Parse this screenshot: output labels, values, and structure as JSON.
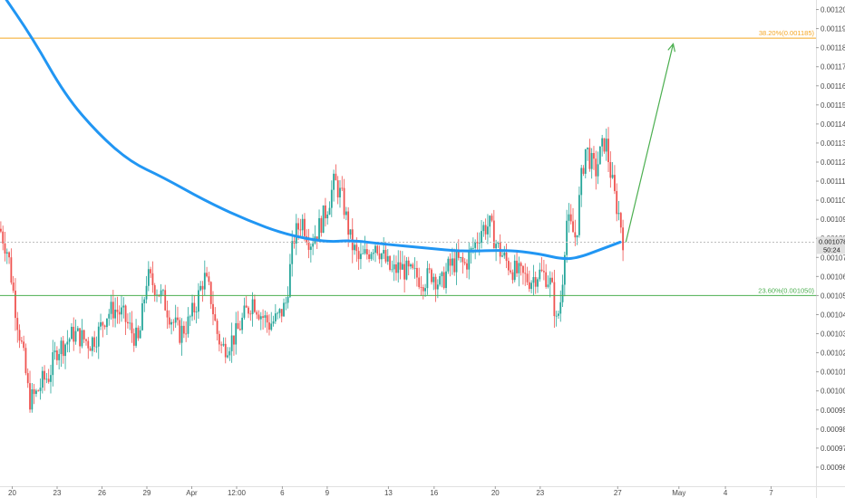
{
  "chart_data": {
    "type": "candlestick",
    "y_axis": {
      "min": 0.00095,
      "max": 0.001205,
      "ticks": [
        "0.001200",
        "0.001190",
        "0.001180",
        "0.001170",
        "0.001160",
        "0.001150",
        "0.001140",
        "0.001130",
        "0.001120",
        "0.001110",
        "0.001100",
        "0.001090",
        "0.001080",
        "0.001070",
        "0.001060",
        "0.001050",
        "0.001040",
        "0.001030",
        "0.001020",
        "0.001010",
        "0.001000",
        "0.000990",
        "0.000980",
        "0.000970",
        "0.000960"
      ]
    },
    "x_axis": {
      "labels": [
        {
          "text": "20",
          "pos": 0.015
        },
        {
          "text": "23",
          "pos": 0.07
        },
        {
          "text": "26",
          "pos": 0.125
        },
        {
          "text": "29",
          "pos": 0.18
        },
        {
          "text": "Apr",
          "pos": 0.235
        },
        {
          "text": "12:00",
          "pos": 0.29
        },
        {
          "text": "6",
          "pos": 0.346
        },
        {
          "text": "9",
          "pos": 0.401
        },
        {
          "text": "13",
          "pos": 0.476
        },
        {
          "text": "16",
          "pos": 0.532
        },
        {
          "text": "20",
          "pos": 0.607
        },
        {
          "text": "23",
          "pos": 0.662
        },
        {
          "text": "27",
          "pos": 0.757
        },
        {
          "text": "May",
          "pos": 0.832
        },
        {
          "text": "4",
          "pos": 0.889
        },
        {
          "text": "7",
          "pos": 0.945
        }
      ]
    },
    "fib_levels": [
      {
        "label": "38.20%(0.001185)",
        "value": 0.001185,
        "color": "#f5a623"
      },
      {
        "label": "23.60%(0.001050)",
        "value": 0.00105,
        "color": "#4caf50"
      }
    ],
    "current_price": {
      "value": 0.001078,
      "label": "0.001078",
      "countdown": "50:24"
    },
    "moving_average": {
      "color": "#2196f3",
      "points": [
        [
          0.0,
          0.00121
        ],
        [
          0.04,
          0.001185
        ],
        [
          0.08,
          0.001155
        ],
        [
          0.12,
          0.001135
        ],
        [
          0.16,
          0.00112
        ],
        [
          0.2,
          0.001112
        ],
        [
          0.25,
          0.0011
        ],
        [
          0.3,
          0.00109
        ],
        [
          0.35,
          0.001082
        ],
        [
          0.4,
          0.001078
        ],
        [
          0.43,
          0.001079
        ],
        [
          0.47,
          0.001077
        ],
        [
          0.52,
          0.001075
        ],
        [
          0.57,
          0.001073
        ],
        [
          0.62,
          0.001074
        ],
        [
          0.66,
          0.001072
        ],
        [
          0.69,
          0.001069
        ],
        [
          0.71,
          0.00107
        ],
        [
          0.735,
          0.001074
        ],
        [
          0.76,
          0.001078
        ]
      ]
    },
    "projection_arrow": {
      "from": [
        0.767,
        0.001078
      ],
      "to": [
        0.825,
        0.001182
      ],
      "color": "#4caf50"
    },
    "price_path": [
      [
        0.0,
        0.001085
      ],
      [
        0.01,
        0.001072
      ],
      [
        0.02,
        0.00104
      ],
      [
        0.028,
        0.00102
      ],
      [
        0.036,
        0.000995
      ],
      [
        0.044,
        0.000998
      ],
      [
        0.052,
        0.001005
      ],
      [
        0.06,
        0.001008
      ],
      [
        0.07,
        0.001022
      ],
      [
        0.08,
        0.001025
      ],
      [
        0.09,
        0.00103
      ],
      [
        0.1,
        0.001028
      ],
      [
        0.11,
        0.001025
      ],
      [
        0.12,
        0.00103
      ],
      [
        0.13,
        0.00104
      ],
      [
        0.14,
        0.001043
      ],
      [
        0.15,
        0.00104
      ],
      [
        0.16,
        0.001032
      ],
      [
        0.17,
        0.001025
      ],
      [
        0.18,
        0.00106
      ],
      [
        0.19,
        0.001055
      ],
      [
        0.2,
        0.001048
      ],
      [
        0.21,
        0.001038
      ],
      [
        0.22,
        0.00103
      ],
      [
        0.23,
        0.001035
      ],
      [
        0.24,
        0.001045
      ],
      [
        0.25,
        0.00106
      ],
      [
        0.258,
        0.00105
      ],
      [
        0.265,
        0.001032
      ],
      [
        0.272,
        0.001022
      ],
      [
        0.28,
        0.001025
      ],
      [
        0.29,
        0.00103
      ],
      [
        0.3,
        0.00104
      ],
      [
        0.31,
        0.001048
      ],
      [
        0.32,
        0.00104
      ],
      [
        0.33,
        0.001035
      ],
      [
        0.34,
        0.001038
      ],
      [
        0.35,
        0.001045
      ],
      [
        0.36,
        0.00108
      ],
      [
        0.37,
        0.00109
      ],
      [
        0.38,
        0.001078
      ],
      [
        0.39,
        0.001085
      ],
      [
        0.4,
        0.001095
      ],
      [
        0.41,
        0.00111
      ],
      [
        0.42,
        0.0011
      ],
      [
        0.43,
        0.001078
      ],
      [
        0.44,
        0.001068
      ],
      [
        0.45,
        0.001072
      ],
      [
        0.46,
        0.001078
      ],
      [
        0.47,
        0.00107
      ],
      [
        0.48,
        0.001062
      ],
      [
        0.49,
        0.001065
      ],
      [
        0.5,
        0.001062
      ],
      [
        0.51,
        0.00106
      ],
      [
        0.52,
        0.001058
      ],
      [
        0.53,
        0.001062
      ],
      [
        0.54,
        0.001055
      ],
      [
        0.55,
        0.001065
      ],
      [
        0.56,
        0.001068
      ],
      [
        0.57,
        0.001066
      ],
      [
        0.58,
        0.001075
      ],
      [
        0.59,
        0.001085
      ],
      [
        0.6,
        0.001087
      ],
      [
        0.61,
        0.001075
      ],
      [
        0.62,
        0.001068
      ],
      [
        0.63,
        0.001063
      ],
      [
        0.64,
        0.00106
      ],
      [
        0.65,
        0.001058
      ],
      [
        0.66,
        0.001062
      ],
      [
        0.67,
        0.00106
      ],
      [
        0.676,
        0.001055
      ],
      [
        0.682,
        0.001035
      ],
      [
        0.688,
        0.00105
      ],
      [
        0.694,
        0.00109
      ],
      [
        0.7,
        0.001085
      ],
      [
        0.706,
        0.00108
      ],
      [
        0.712,
        0.00111
      ],
      [
        0.718,
        0.001128
      ],
      [
        0.724,
        0.00112
      ],
      [
        0.73,
        0.001115
      ],
      [
        0.736,
        0.001125
      ],
      [
        0.742,
        0.001132
      ],
      [
        0.748,
        0.001115
      ],
      [
        0.754,
        0.0011
      ],
      [
        0.76,
        0.00109
      ],
      [
        0.764,
        0.001078
      ]
    ]
  }
}
